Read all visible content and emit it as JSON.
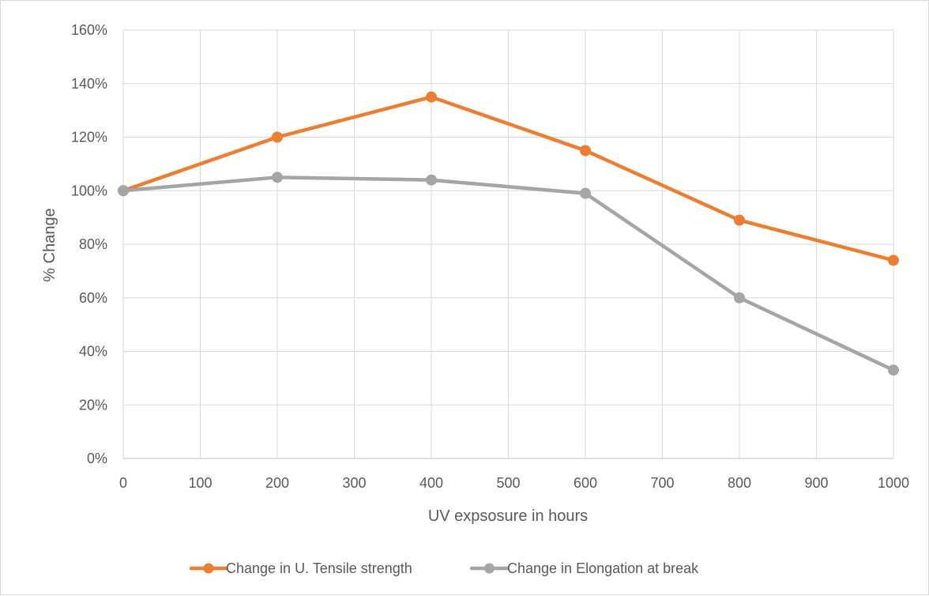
{
  "chart_data": {
    "type": "line",
    "title": "",
    "xlabel": "UV expsosure in hours",
    "ylabel": "% Change",
    "x": [
      0,
      200,
      400,
      600,
      800,
      1000
    ],
    "xlim": [
      0,
      1000
    ],
    "xticks": [
      0,
      100,
      200,
      300,
      400,
      500,
      600,
      700,
      800,
      900,
      1000
    ],
    "xtick_labels": [
      "0",
      "100",
      "200",
      "300",
      "400",
      "500",
      "600",
      "700",
      "800",
      "900",
      "1000"
    ],
    "ylim": [
      0,
      160
    ],
    "yticks": [
      0,
      20,
      40,
      60,
      80,
      100,
      120,
      140,
      160
    ],
    "ytick_labels": [
      "0%",
      "20%",
      "40%",
      "60%",
      "80%",
      "100%",
      "120%",
      "140%",
      "160%"
    ],
    "grid": true,
    "legend_position": "bottom",
    "series": [
      {
        "name": "Change in U. Tensile strength",
        "color": "#ed7d31",
        "values": [
          100,
          120,
          135,
          115,
          89,
          74
        ]
      },
      {
        "name": "Change in Elongation at break",
        "color": "#a5a5a5",
        "values": [
          100,
          105,
          104,
          99,
          60,
          33
        ]
      }
    ]
  }
}
